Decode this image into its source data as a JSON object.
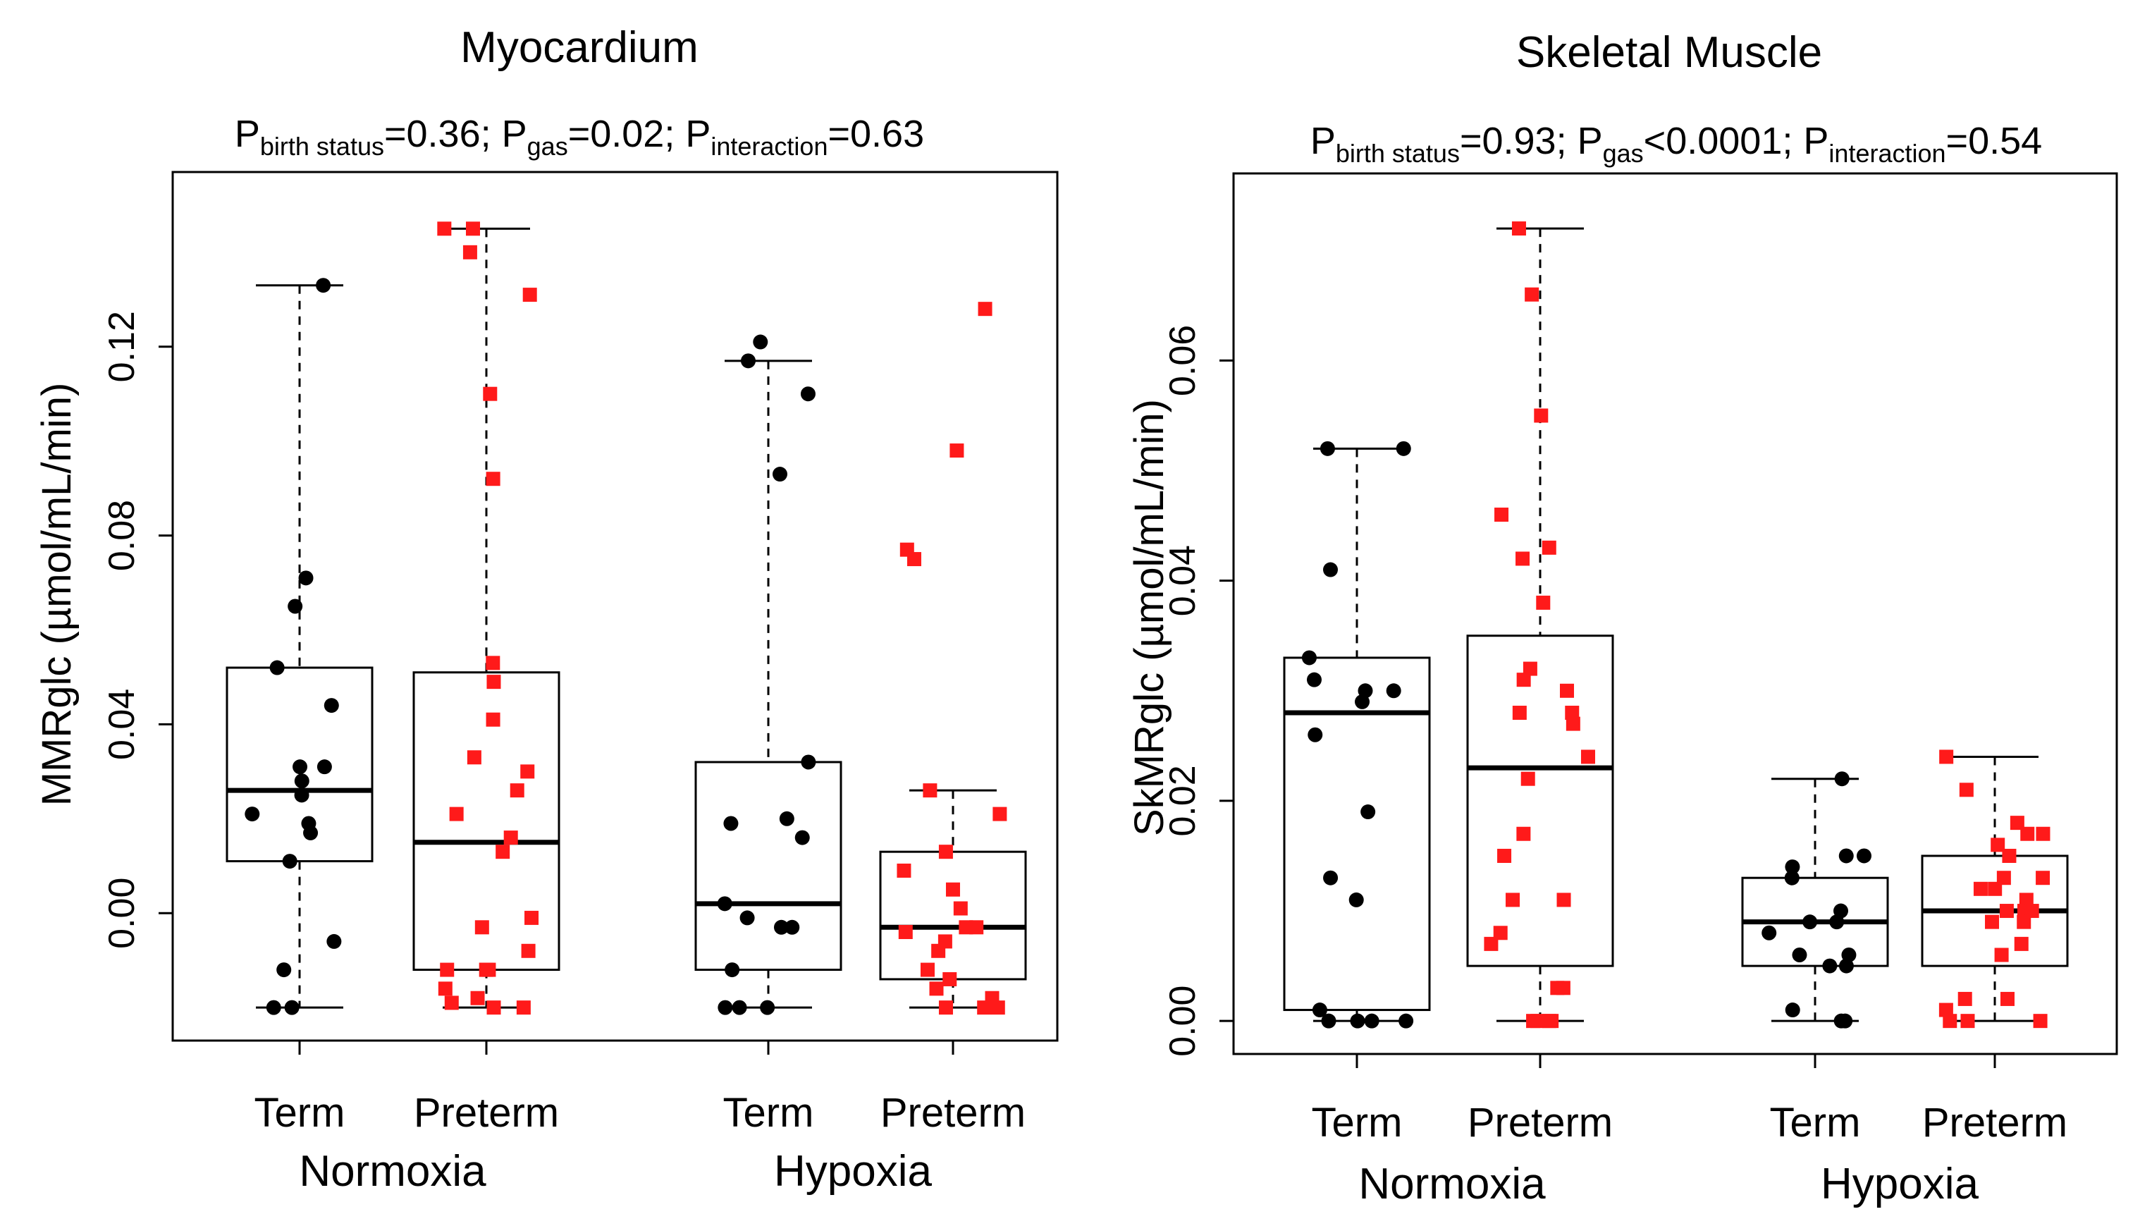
{
  "chart_data": [
    {
      "type": "box",
      "title": "Myocardium",
      "pvalues": {
        "birth_sub": "birth status",
        "birth_val": "=0.36; ",
        "gas_sub": "gas",
        "gas_val": "=0.02; ",
        "inter_sub": "interaction",
        "inter_val": "=0.63",
        "p": "P"
      },
      "ylabel": "MMRglc (µmol/mL/min)",
      "ylim": [
        -0.027,
        0.157
      ],
      "yticks": [
        0.0,
        0.04,
        0.08,
        0.12
      ],
      "ytick_labels": [
        "0.00",
        "0.04",
        "0.08",
        "0.12"
      ],
      "categories": [
        "Term",
        "Preterm",
        "Term",
        "Preterm"
      ],
      "groups": [
        "Normoxia",
        "Hypoxia"
      ],
      "colors": {
        "Term": "#000000",
        "Preterm": "#ff1a1a"
      },
      "boxes": [
        {
          "group": "Normoxia",
          "category": "Term",
          "whisker_low": -0.02,
          "q1": 0.011,
          "median": 0.026,
          "q3": 0.052,
          "whisker_high": 0.133,
          "points": [
            0.133,
            0.071,
            0.065,
            0.052,
            0.044,
            0.031,
            0.031,
            0.028,
            0.025,
            0.021,
            0.019,
            0.017,
            0.011,
            -0.006,
            -0.012,
            -0.02,
            -0.02
          ]
        },
        {
          "group": "Normoxia",
          "category": "Preterm",
          "whisker_low": -0.02,
          "q1": -0.012,
          "median": 0.015,
          "q3": 0.051,
          "whisker_high": 0.145,
          "points": [
            0.145,
            0.145,
            0.14,
            0.131,
            0.11,
            0.092,
            0.053,
            0.049,
            0.041,
            0.033,
            0.03,
            0.026,
            0.021,
            0.016,
            0.013,
            -0.001,
            -0.003,
            -0.008,
            -0.012,
            -0.012,
            -0.012,
            -0.012,
            -0.016,
            -0.018,
            -0.02,
            -0.02,
            -0.019
          ]
        },
        {
          "group": "Hypoxia",
          "category": "Term",
          "whisker_low": -0.02,
          "q1": -0.012,
          "median": 0.002,
          "q3": 0.032,
          "whisker_high": 0.117,
          "points": [
            0.121,
            0.117,
            0.11,
            0.093,
            0.032,
            0.02,
            0.019,
            0.016,
            0.002,
            -0.001,
            -0.003,
            -0.003,
            -0.012,
            -0.02,
            -0.02,
            -0.02
          ]
        },
        {
          "group": "Hypoxia",
          "category": "Preterm",
          "whisker_low": -0.02,
          "q1": -0.014,
          "median": -0.003,
          "q3": 0.013,
          "whisker_high": 0.026,
          "points": [
            0.128,
            0.098,
            0.077,
            0.075,
            0.026,
            0.021,
            0.013,
            0.009,
            0.005,
            0.001,
            -0.003,
            -0.003,
            -0.004,
            -0.006,
            -0.008,
            -0.012,
            -0.014,
            -0.016,
            -0.018,
            -0.02,
            -0.02,
            -0.02
          ]
        }
      ]
    },
    {
      "type": "box",
      "title": "Skeletal Muscle",
      "pvalues": {
        "birth_sub": "birth status",
        "birth_val": "=0.93; ",
        "gas_sub": "gas",
        "gas_val": "<0.0001; ",
        "inter_sub": "interaction",
        "inter_val": "=0.54",
        "p": "P"
      },
      "ylabel": "SkMRglc (µmol/mL/min)",
      "ylim": [
        -0.003,
        0.077
      ],
      "yticks": [
        0.0,
        0.02,
        0.04,
        0.06
      ],
      "ytick_labels": [
        "0.00",
        "0.02",
        "0.04",
        "0.06"
      ],
      "categories": [
        "Term",
        "Preterm",
        "Term",
        "Preterm"
      ],
      "groups": [
        "Normoxia",
        "Hypoxia"
      ],
      "colors": {
        "Term": "#000000",
        "Preterm": "#ff1a1a"
      },
      "boxes": [
        {
          "group": "Normoxia",
          "category": "Term",
          "whisker_low": 0.0,
          "q1": 0.001,
          "median": 0.028,
          "q3": 0.033,
          "whisker_high": 0.052,
          "points": [
            0.052,
            0.052,
            0.041,
            0.033,
            0.031,
            0.03,
            0.03,
            0.029,
            0.026,
            0.019,
            0.013,
            0.011,
            0.001,
            0.0,
            0.0,
            0.0,
            0.0
          ]
        },
        {
          "group": "Normoxia",
          "category": "Preterm",
          "whisker_low": 0.0,
          "q1": 0.005,
          "median": 0.023,
          "q3": 0.035,
          "whisker_high": 0.072,
          "points": [
            0.072,
            0.066,
            0.055,
            0.046,
            0.043,
            0.042,
            0.038,
            0.032,
            0.031,
            0.03,
            0.028,
            0.028,
            0.027,
            0.024,
            0.022,
            0.017,
            0.015,
            0.011,
            0.011,
            0.008,
            0.007,
            0.003,
            0.003,
            0.0,
            0.0,
            0.0,
            0.0
          ]
        },
        {
          "group": "Hypoxia",
          "category": "Term",
          "whisker_low": 0.0,
          "q1": 0.005,
          "median": 0.009,
          "q3": 0.013,
          "whisker_high": 0.022,
          "points": [
            0.022,
            0.015,
            0.015,
            0.014,
            0.013,
            0.01,
            0.009,
            0.009,
            0.008,
            0.006,
            0.006,
            0.005,
            0.005,
            0.001,
            0.0,
            0.0
          ]
        },
        {
          "group": "Hypoxia",
          "category": "Preterm",
          "whisker_low": 0.0,
          "q1": 0.005,
          "median": 0.01,
          "q3": 0.015,
          "whisker_high": 0.024,
          "points": [
            0.024,
            0.021,
            0.018,
            0.017,
            0.017,
            0.016,
            0.015,
            0.013,
            0.013,
            0.012,
            0.012,
            0.011,
            0.01,
            0.01,
            0.01,
            0.009,
            0.009,
            0.007,
            0.006,
            0.002,
            0.002,
            0.001,
            0.0,
            0.0,
            0.0
          ]
        }
      ]
    }
  ]
}
